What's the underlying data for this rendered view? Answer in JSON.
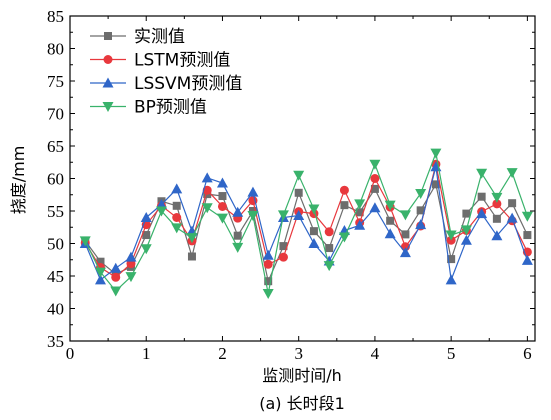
{
  "chart_data": {
    "type": "line",
    "xlabel": "监测时间/h",
    "ylabel": "挠度/mm",
    "caption": "(a) 长时段1",
    "xlim": [
      0,
      6.1
    ],
    "ylim": [
      35,
      85
    ],
    "xticks": [
      0,
      1,
      2,
      3,
      4,
      5,
      6
    ],
    "yticks": [
      35,
      40,
      45,
      50,
      55,
      60,
      65,
      70,
      75,
      80,
      85
    ],
    "grid": false,
    "legend_position": "top-left",
    "x": [
      0.2,
      0.4,
      0.6,
      0.8,
      1.0,
      1.2,
      1.4,
      1.6,
      1.8,
      2.0,
      2.2,
      2.4,
      2.6,
      2.8,
      3.0,
      3.2,
      3.4,
      3.6,
      3.8,
      4.0,
      4.2,
      4.4,
      4.6,
      4.8,
      5.0,
      5.2,
      5.4,
      5.6,
      5.8,
      6.0
    ],
    "series": [
      {
        "name": "实测值",
        "color": "#6d6d6d",
        "marker": "square",
        "values": [
          50.4,
          47.2,
          45.3,
          46.4,
          51.3,
          56.5,
          55.8,
          48.0,
          57.6,
          57.3,
          51.2,
          55.0,
          44.2,
          49.6,
          57.8,
          51.9,
          49.3,
          55.9,
          54.8,
          58.4,
          53.5,
          51.4,
          55.1,
          59.1,
          47.6,
          54.6,
          57.2,
          53.8,
          56.2,
          51.3
        ]
      },
      {
        "name": "LSTM预测值",
        "color": "#e8383d",
        "marker": "circle",
        "values": [
          50.1,
          46.3,
          44.8,
          46.9,
          52.9,
          55.8,
          54.0,
          50.4,
          58.2,
          55.7,
          53.9,
          56.6,
          46.8,
          47.9,
          54.9,
          54.6,
          51.8,
          58.2,
          53.2,
          60.0,
          55.6,
          49.5,
          52.7,
          62.2,
          50.5,
          52.0,
          54.9,
          56.1,
          53.5,
          48.7
        ]
      },
      {
        "name": "LSSVM预测值",
        "color": "#2f66c8",
        "marker": "triangle-up",
        "values": [
          50.0,
          44.4,
          46.2,
          47.9,
          54.0,
          56.0,
          58.4,
          51.9,
          60.1,
          59.3,
          54.8,
          57.9,
          48.2,
          54.0,
          54.3,
          50.0,
          47.3,
          52.0,
          52.8,
          55.5,
          51.5,
          48.6,
          52.9,
          61.8,
          44.4,
          50.5,
          54.6,
          51.2,
          53.9,
          47.4
        ]
      },
      {
        "name": "BP预测值",
        "color": "#39b26b",
        "marker": "triangle-down",
        "values": [
          50.4,
          45.6,
          42.7,
          44.9,
          49.2,
          55.0,
          52.4,
          50.9,
          55.5,
          53.9,
          49.4,
          54.3,
          42.3,
          54.4,
          60.5,
          55.3,
          46.6,
          51.0,
          56.1,
          62.2,
          55.9,
          54.4,
          57.7,
          63.9,
          51.3,
          52.1,
          60.8,
          57.1,
          60.9,
          54.2
        ]
      }
    ]
  }
}
